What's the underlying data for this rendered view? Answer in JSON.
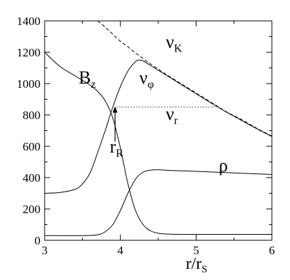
{
  "chart_data": {
    "type": "line",
    "xlabel": {
      "main": "r/r",
      "sub": "S"
    },
    "xlim": [
      3,
      6
    ],
    "ylim": [
      0,
      1400
    ],
    "xticks": [
      3,
      4,
      5,
      6
    ],
    "yticks": [
      0,
      200,
      400,
      600,
      800,
      1000,
      1200,
      1400
    ],
    "tick_labels_x": [
      "3",
      "4",
      "5",
      "6"
    ],
    "tick_labels_y": [
      "0",
      "200",
      "400",
      "600",
      "800",
      "1000",
      "1200",
      "1400"
    ],
    "grid": false,
    "series": [
      {
        "name": "v_K",
        "style": "dashed",
        "x": [
          3.7,
          3.8,
          3.9,
          4.0,
          4.1,
          4.2,
          4.3,
          4.4,
          4.6,
          4.8,
          5.0,
          5.2,
          5.4,
          5.6,
          5.8,
          6.0
        ],
        "y": [
          1400,
          1360,
          1315,
          1270,
          1235,
          1195,
          1160,
          1125,
          1060,
          1000,
          940,
          880,
          820,
          770,
          715,
          665
        ]
      },
      {
        "name": "v_phi",
        "style": "solid",
        "x": [
          3.0,
          3.2,
          3.4,
          3.5,
          3.6,
          3.7,
          3.8,
          3.9,
          4.0,
          4.1,
          4.2,
          4.25,
          4.3,
          4.4,
          4.6,
          4.8,
          5.0,
          5.2,
          5.4,
          5.6,
          5.8,
          6.0
        ],
        "y": [
          300,
          305,
          325,
          360,
          430,
          560,
          700,
          850,
          980,
          1080,
          1140,
          1150,
          1145,
          1115,
          1055,
          995,
          935,
          875,
          818,
          765,
          712,
          662
        ]
      },
      {
        "name": "B_z",
        "style": "solid",
        "x": [
          3.0,
          3.2,
          3.4,
          3.6,
          3.7,
          3.8,
          3.9,
          4.0,
          4.1,
          4.2,
          4.3,
          4.4,
          4.5,
          4.6,
          4.8,
          5.0,
          5.5,
          6.0
        ],
        "y": [
          1200,
          1110,
          1050,
          990,
          950,
          890,
          780,
          590,
          360,
          190,
          100,
          60,
          45,
          40,
          38,
          38,
          38,
          38
        ]
      },
      {
        "name": "rho",
        "style": "solid",
        "x": [
          3.0,
          3.5,
          3.7,
          3.8,
          3.9,
          4.0,
          4.1,
          4.2,
          4.3,
          4.4,
          4.5,
          4.7,
          5.0,
          5.5,
          6.0
        ],
        "y": [
          30,
          30,
          35,
          55,
          100,
          190,
          300,
          390,
          435,
          448,
          450,
          445,
          440,
          430,
          420
        ]
      },
      {
        "name": "v_r",
        "style": "dotted",
        "x": [
          3.95,
          5.25
        ],
        "y": [
          850,
          850
        ]
      }
    ],
    "annotations": [
      {
        "main": "ν",
        "sub": "K",
        "x": 4.6,
        "y": 1230
      },
      {
        "main": "ν",
        "sub": "φ",
        "x": 4.25,
        "y": 1000
      },
      {
        "main": "B",
        "sub": "z",
        "x": 3.45,
        "y": 1000
      },
      {
        "main": "ν",
        "sub": "r",
        "x": 4.6,
        "y": 770
      },
      {
        "main": "r",
        "sub": "R",
        "x": 3.86,
        "y": 560
      },
      {
        "main": "ρ",
        "sub": "",
        "x": 5.3,
        "y": 440
      }
    ],
    "arrow": {
      "x": 3.93,
      "y_from": 630,
      "y_to": 855
    }
  }
}
